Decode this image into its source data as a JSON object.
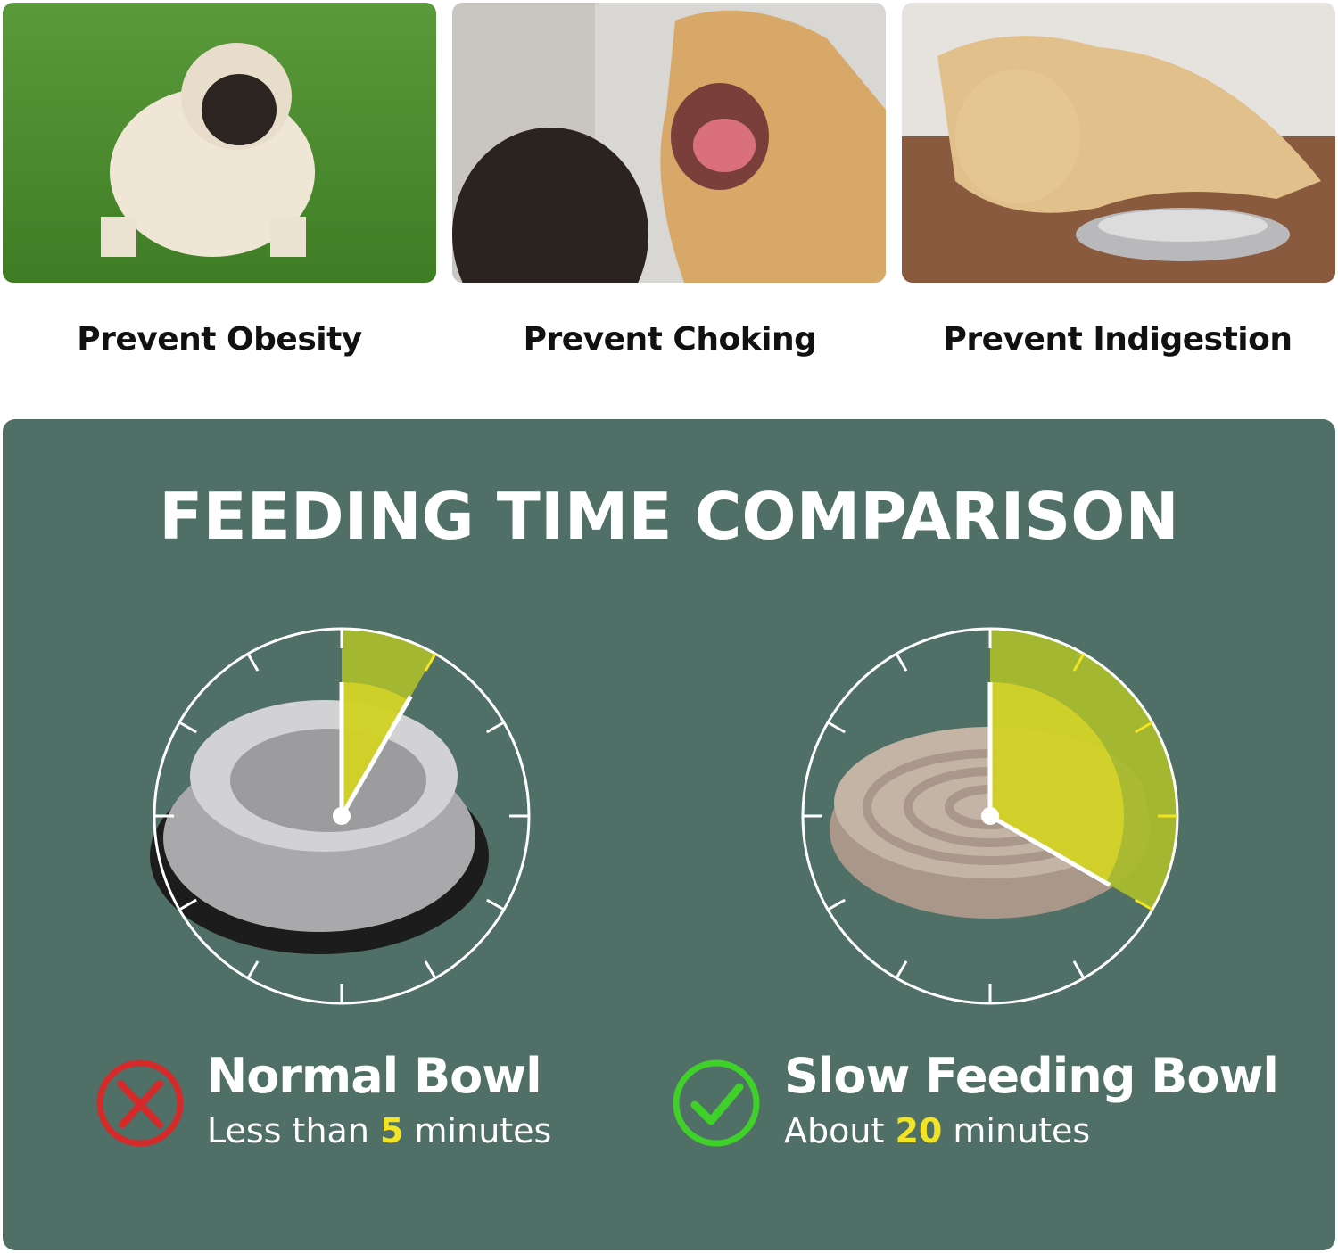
{
  "benefits": [
    {
      "label": "Prevent Obesity",
      "image": "pug-on-grass"
    },
    {
      "label": "Prevent Choking",
      "image": "golden-retriever-mouth-exam"
    },
    {
      "label": "Prevent Indigestion",
      "image": "labrador-lying-by-bowl"
    }
  ],
  "comparison": {
    "title": "FEEDING TIME COMPARISON",
    "colors": {
      "panel": "#4f6f67",
      "sector": "#a9bb2e",
      "highlight": "#f2e424",
      "bad": "#d42a2a",
      "good": "#3fd12a"
    },
    "normal": {
      "name": "Normal Bowl",
      "prefix": "Less than ",
      "value": "5",
      "suffix": " minutes",
      "minutes": 5,
      "icon": "x-circle-icon"
    },
    "slow": {
      "name": "Slow Feeding Bowl",
      "prefix": "About ",
      "value": "20",
      "suffix": " minutes",
      "minutes": 20,
      "icon": "check-circle-icon"
    }
  }
}
